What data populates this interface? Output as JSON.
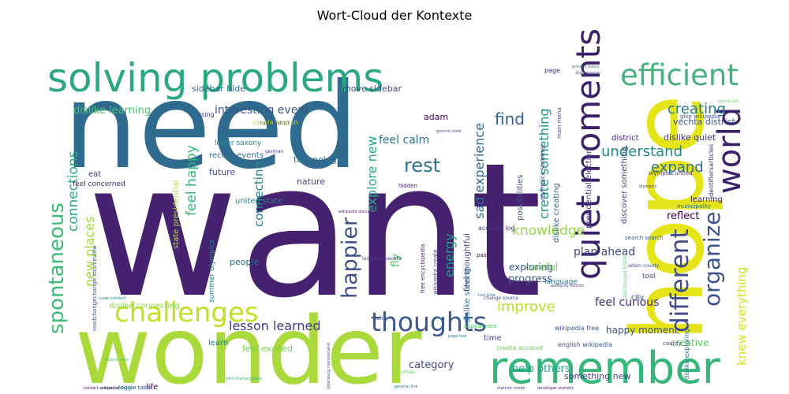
{
  "title": "Wort-Cloud der Kontexte",
  "chart_data": {
    "type": "wordcloud",
    "title": "Wort-Cloud der Kontexte",
    "words": [
      {
        "text": "want",
        "weight": 100,
        "color": "#46216f"
      },
      {
        "text": "need",
        "weight": 96,
        "color": "#2f6b8e"
      },
      {
        "text": "wonder",
        "weight": 88,
        "color": "#a9d93a"
      },
      {
        "text": "hope",
        "weight": 84,
        "color": "#e4e418"
      },
      {
        "text": "remember",
        "weight": 46,
        "color": "#35b779"
      },
      {
        "text": "solving problems",
        "weight": 42,
        "color": "#2aa883"
      },
      {
        "text": "quiet moments",
        "weight": 36,
        "color": "#3b1f6b"
      },
      {
        "text": "world",
        "weight": 36,
        "color": "#3b1f6b"
      },
      {
        "text": "efficient",
        "weight": 32,
        "color": "#45b27e"
      },
      {
        "text": "challenges",
        "weight": 30,
        "color": "#c2df23"
      },
      {
        "text": "thoughts",
        "weight": 30,
        "color": "#38588c"
      },
      {
        "text": "different",
        "weight": 28,
        "color": "#3e4a89"
      },
      {
        "text": "organize",
        "weight": 26,
        "color": "#3b528b"
      },
      {
        "text": "happier",
        "weight": 24,
        "color": "#3c4f8a"
      },
      {
        "text": "spontaneous",
        "weight": 24,
        "color": "#3dbc74"
      },
      {
        "text": "rest",
        "weight": 20,
        "color": "#2c728e"
      },
      {
        "text": "find",
        "weight": 18,
        "color": "#33638d"
      },
      {
        "text": "understand",
        "weight": 16,
        "color": "#23888e"
      },
      {
        "text": "expand",
        "weight": 16,
        "color": "#2d708e"
      },
      {
        "text": "creating",
        "weight": 16,
        "color": "#2a788e"
      },
      {
        "text": "improve",
        "weight": 16,
        "color": "#b8de29"
      },
      {
        "text": "knowledge",
        "weight": 15,
        "color": "#95d840"
      },
      {
        "text": "connections",
        "weight": 15,
        "color": "#29af7f"
      },
      {
        "text": "feel happy",
        "weight": 15,
        "color": "#31b57b"
      },
      {
        "text": "lesson learned",
        "weight": 14,
        "color": "#443a83"
      },
      {
        "text": "explore new",
        "weight": 14,
        "color": "#27ad81"
      },
      {
        "text": "create something",
        "weight": 14,
        "color": "#21918c"
      },
      {
        "text": "sad experience",
        "weight": 14,
        "color": "#30698e"
      },
      {
        "text": "energy",
        "weight": 14,
        "color": "#1f9e89"
      },
      {
        "text": "new places",
        "weight": 14,
        "color": "#a0da39"
      },
      {
        "text": "knew everything",
        "weight": 13,
        "color": "#d5e21a"
      },
      {
        "text": "connecting",
        "weight": 13,
        "color": "#24868e"
      },
      {
        "text": "interesting event",
        "weight": 12,
        "color": "#38598c"
      },
      {
        "text": "dislike learning",
        "weight": 11,
        "color": "#4ac16d"
      },
      {
        "text": "feel calm",
        "weight": 12,
        "color": "#2c738e"
      },
      {
        "text": "feel curious",
        "weight": 12,
        "color": "#472c7a"
      },
      {
        "text": "plan ahead",
        "weight": 12,
        "color": "#3f4889"
      },
      {
        "text": "fly",
        "weight": 12,
        "color": "#52c569"
      },
      {
        "text": "progress",
        "weight": 11,
        "color": "#39568c"
      },
      {
        "text": "reflect",
        "weight": 11,
        "color": "#440154"
      },
      {
        "text": "help others",
        "weight": 11,
        "color": "#20a386"
      },
      {
        "text": "category",
        "weight": 11,
        "color": "#3e4c8a"
      },
      {
        "text": "exploring",
        "weight": 10,
        "color": "#3a538b"
      },
      {
        "text": "careful",
        "weight": 10,
        "color": "#6ccd5a"
      },
      {
        "text": "creative",
        "weight": 10,
        "color": "#5ec962"
      },
      {
        "text": "happy moment",
        "weight": 10,
        "color": "#3b518b"
      },
      {
        "text": "something new",
        "weight": 9,
        "color": "#433e85"
      },
      {
        "text": "feel excited",
        "weight": 9,
        "color": "#7ad151"
      },
      {
        "text": "move sidebar",
        "weight": 9,
        "color": "#3e4989"
      },
      {
        "text": "sidebar hide",
        "weight": 9,
        "color": "#2f6c8e"
      },
      {
        "text": "adam",
        "weight": 9,
        "color": "#440154"
      },
      {
        "text": "future",
        "weight": 9,
        "color": "#3d4d8a"
      },
      {
        "text": "nature",
        "weight": 9,
        "color": "#424086"
      },
      {
        "text": "technology",
        "weight": 9,
        "color": "#2d718e"
      },
      {
        "text": "people",
        "weight": 9,
        "color": "#2e6e8e"
      },
      {
        "text": "learning",
        "weight": 8,
        "color": "#482475"
      },
      {
        "text": "dislike quiet",
        "weight": 9,
        "color": "#453581"
      },
      {
        "text": "district",
        "weight": 8,
        "color": "#482878"
      },
      {
        "text": "vechta district",
        "weight": 9,
        "color": "#3b528b"
      },
      {
        "text": "time",
        "weight": 8,
        "color": "#414487"
      },
      {
        "text": "life",
        "weight": 8,
        "color": "#440154"
      },
      {
        "text": "eat",
        "weight": 8,
        "color": "#46327e"
      },
      {
        "text": "learn",
        "weight": 8,
        "color": "#277f8e"
      },
      {
        "text": "united state",
        "weight": 8,
        "color": "#26828e"
      },
      {
        "text": "recent events",
        "weight": 8,
        "color": "#31688e"
      },
      {
        "text": "feel concerned",
        "weight": 7,
        "color": "#48186a"
      },
      {
        "text": "language",
        "weight": 7,
        "color": "#287c8e"
      },
      {
        "text": "tool",
        "weight": 7,
        "color": "#3f4788"
      },
      {
        "text": "city",
        "weight": 7,
        "color": "#3b528b"
      },
      {
        "text": "possibilities",
        "weight": 9,
        "color": "#3b528b"
      },
      {
        "text": "dislike creating",
        "weight": 8,
        "color": "#33638d"
      },
      {
        "text": "presidential election",
        "weight": 8,
        "color": "#414487"
      },
      {
        "text": "discover something",
        "weight": 8,
        "color": "#3e4a89"
      },
      {
        "text": "dislike solving",
        "weight": 8,
        "color": "#2e6f8e"
      },
      {
        "text": "feel thoughtful",
        "weight": 8,
        "color": "#3f4788"
      },
      {
        "text": "state presidential",
        "weight": 8,
        "color": "#aadc32"
      },
      {
        "text": "summer olympics",
        "weight": 7,
        "color": "#277f8e"
      },
      {
        "text": "lower saxony",
        "weight": 7,
        "color": "#25858e"
      },
      {
        "text": "dislike connecting",
        "weight": 8,
        "color": "#90d743"
      },
      {
        "text": "olympics summer",
        "weight": 6,
        "color": "#3e4989"
      },
      {
        "text": "account log",
        "weight": 6,
        "color": "#433d84"
      },
      {
        "text": "english wikipedia",
        "weight": 6,
        "color": "#3b528b"
      },
      {
        "text": "olympics united",
        "weight": 6,
        "color": "#453882"
      },
      {
        "text": "identifiersarticles",
        "weight": 6,
        "color": "#46327e"
      },
      {
        "text": "municipality",
        "weight": 6,
        "color": "#2c728e"
      },
      {
        "text": "search search",
        "weight": 6,
        "color": "#32648e"
      },
      {
        "text": "adam county",
        "weight": 5,
        "color": "#3a548c"
      },
      {
        "text": "wikipedia free",
        "weight": 6,
        "color": "#38598c"
      },
      {
        "text": "create account",
        "weight": 6,
        "color": "#6ece58"
      },
      {
        "text": "dislike exploring",
        "weight": 6,
        "color": "#2d708e"
      },
      {
        "text": "give wikipedia",
        "weight": 5,
        "color": "#3b528b"
      },
      {
        "text": "main menu",
        "weight": 6,
        "color": "#433e85"
      },
      {
        "text": "page",
        "weight": 6,
        "color": "#482576"
      },
      {
        "text": "using",
        "weight": 6,
        "color": "#46327e"
      },
      {
        "text": "simple english",
        "weight": 6,
        "color": "#c2df23"
      },
      {
        "text": "hidden",
        "weight": 5,
        "color": "#481a6c"
      },
      {
        "text": "past",
        "weight": 5,
        "color": "#440154"
      },
      {
        "text": "john",
        "weight": 5,
        "color": "#3b528b"
      },
      {
        "text": "county",
        "weight": 5,
        "color": "#433e85"
      },
      {
        "text": "toggle table",
        "weight": 5,
        "color": "#3b528b"
      },
      {
        "text": "free encyclopedia",
        "weight": 5,
        "color": "#482173"
      },
      {
        "text": "wikipedia create",
        "weight": 5,
        "color": "#3f4788"
      },
      {
        "text": "appearance",
        "weight": 5,
        "color": "#52c569"
      },
      {
        "text": "rural district",
        "weight": 4,
        "color": "#3e4a89"
      },
      {
        "text": "german",
        "weight": 4,
        "color": "#424086"
      },
      {
        "text": "landkreis vechta",
        "weight": 4,
        "color": "#443983"
      },
      {
        "text": "readchangechange sourceview",
        "weight": 4,
        "color": "#3b528b"
      },
      {
        "text": "change source",
        "weight": 4,
        "color": "#3e4c8a"
      },
      {
        "text": "urban",
        "weight": 4,
        "color": "#5ec962"
      },
      {
        "text": "olympics",
        "weight": 3,
        "color": "#46327e"
      },
      {
        "text": "wikipedia disclaimer",
        "weight": 3,
        "color": "#481f70"
      },
      {
        "text": "oldenburg münsterland",
        "weight": 3,
        "color": "#3b528b"
      },
      {
        "text": "privacy policy",
        "weight": 3,
        "color": "#2c728e"
      },
      {
        "text": "general link",
        "weight": 3,
        "color": "#2a788e"
      },
      {
        "text": "statistic mode",
        "weight": 3,
        "color": "#414487"
      },
      {
        "text": "developer statistic",
        "weight": 3,
        "color": "#482475"
      },
      {
        "text": "page tool",
        "weight": 3,
        "color": "#2f6c8e"
      },
      {
        "text": "article talk",
        "weight": 3,
        "color": "#6ccd5a"
      },
      {
        "text": "authority control",
        "weight": 3,
        "color": "#46307e"
      },
      {
        "text": "edit interlanguage",
        "weight": 3,
        "color": "#35b779"
      },
      {
        "text": "tool hide",
        "weight": 3,
        "color": "#2c728e"
      },
      {
        "text": "log personal",
        "weight": 3,
        "color": "#433e85"
      },
      {
        "text": "cookie statement",
        "weight": 3,
        "color": "#1f9e89"
      },
      {
        "text": "mobile view",
        "weight": 3,
        "color": "#44bf70"
      },
      {
        "text": "ground state",
        "weight": 3,
        "color": "#3b528b"
      },
      {
        "text": "lastchanged history",
        "weight": 3,
        "color": "#5ec962"
      },
      {
        "text": "code conduct",
        "weight": 3,
        "color": "#26828e"
      },
      {
        "text": "contact wikipedia",
        "weight": 3,
        "color": "#440154"
      }
    ]
  }
}
